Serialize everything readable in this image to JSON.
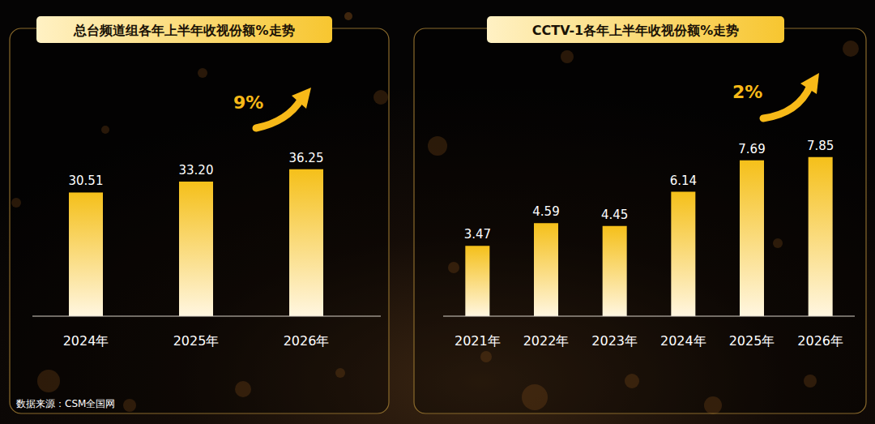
{
  "chart_data": [
    {
      "type": "bar",
      "title": "总台频道组各年上半年收视份额%走势",
      "categories": [
        "2024年",
        "2025年",
        "2026年"
      ],
      "values": [
        30.51,
        33.2,
        36.25
      ],
      "value_labels": [
        "30.51",
        "33.20",
        "36.25"
      ],
      "color": "#f5c01a",
      "ylim": [
        0,
        50
      ],
      "data_labels": true,
      "tick_labels": "x",
      "grid": false,
      "annotation": "9%"
    },
    {
      "type": "bar",
      "title": "CCTV-1各年上半年收视份额%走势",
      "categories": [
        "2021年",
        "2022年",
        "2023年",
        "2024年",
        "2025年",
        "2026年"
      ],
      "values": [
        3.47,
        4.59,
        4.45,
        6.14,
        7.69,
        7.85
      ],
      "value_labels": [
        "3.47",
        "4.59",
        "4.45",
        "6.14",
        "7.69",
        "7.85"
      ],
      "color": "#f5c01a",
      "ylim": [
        0,
        10
      ],
      "data_labels": true,
      "tick_labels": "x",
      "grid": false,
      "annotation": "2%"
    }
  ],
  "source": "数据来源：CSM全国网"
}
